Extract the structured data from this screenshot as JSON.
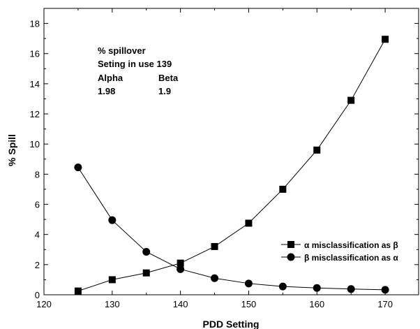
{
  "chart_data": {
    "type": "line",
    "xlabel": "PDD Setting",
    "ylabel": "% Spill",
    "xlim": [
      120,
      175
    ],
    "ylim": [
      0,
      19
    ],
    "xticks": [
      120,
      130,
      140,
      150,
      160,
      170
    ],
    "yticks": [
      0,
      2,
      4,
      6,
      8,
      10,
      12,
      14,
      16,
      18
    ],
    "grid": false,
    "legend_position": "right",
    "annotation": {
      "line1": "% spillover",
      "line2": "Seting in use 139",
      "alpha_label": "Alpha",
      "beta_label": "Beta",
      "alpha_value": "1.98",
      "beta_value": "1.9"
    },
    "series": [
      {
        "name": "α  misclassification as β",
        "marker": "square",
        "x": [
          125,
          130,
          135,
          140,
          145,
          150,
          155,
          160,
          165,
          170
        ],
        "y": [
          0.25,
          1.0,
          1.45,
          2.1,
          3.2,
          4.75,
          7.0,
          9.6,
          12.9,
          16.95
        ]
      },
      {
        "name": "β  misclassification as α",
        "marker": "circle",
        "x": [
          125,
          130,
          135,
          140,
          145,
          150,
          155,
          160,
          165,
          170
        ],
        "y": [
          8.45,
          4.95,
          2.85,
          1.7,
          1.1,
          0.75,
          0.55,
          0.45,
          0.38,
          0.33
        ]
      }
    ]
  }
}
